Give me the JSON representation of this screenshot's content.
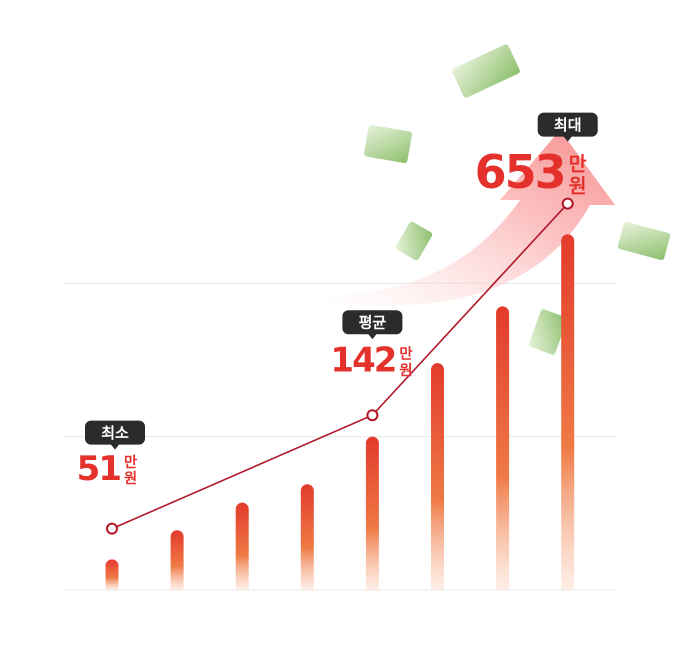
{
  "chart_data": {
    "type": "bar",
    "categories": [
      null,
      null,
      null,
      null,
      null,
      null,
      null,
      null
    ],
    "values": [
      0.2,
      0.39,
      0.57,
      0.69,
      1.0,
      1.48,
      1.85,
      2.32
    ],
    "ylim": [
      0,
      3
    ],
    "yticks": [
      0,
      1,
      2
    ],
    "grid": true,
    "color": "#e8452f",
    "line_color": "#b0182a",
    "annotations": [
      {
        "tag": "최소",
        "value": 51,
        "unit": [
          "만",
          "원"
        ],
        "bar": 0,
        "y": 0.4
      },
      {
        "tag": "평균",
        "value": 142,
        "unit": [
          "만",
          "원"
        ],
        "bar": 4,
        "y": 1.14
      },
      {
        "tag": "최대",
        "value": 653,
        "unit": [
          "만",
          "원"
        ],
        "bar": 7,
        "y": 2.52
      }
    ]
  }
}
